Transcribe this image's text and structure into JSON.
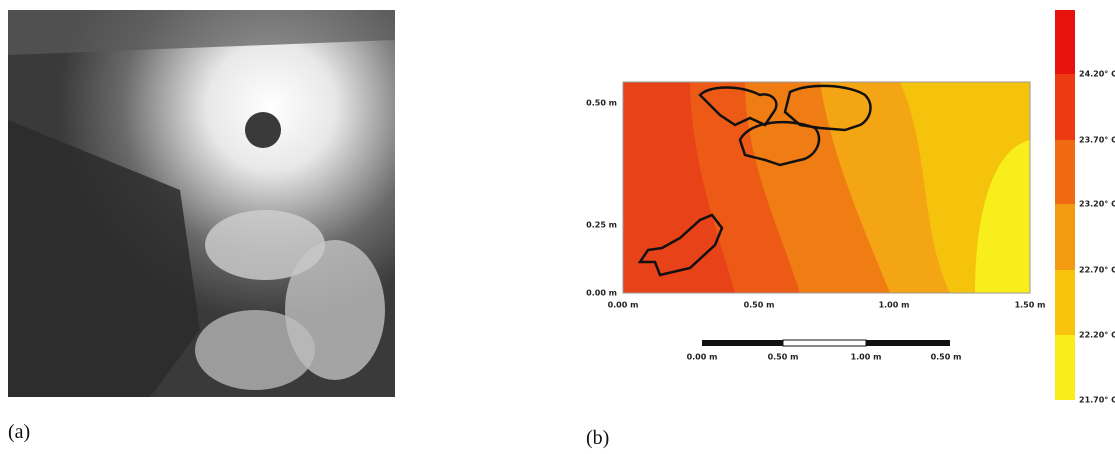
{
  "panels": {
    "a": {
      "label": "(a)"
    },
    "b": {
      "label": "(b)",
      "x_ticks": [
        "0.00 m",
        "0.50 m",
        "1.00 m",
        "1.50 m"
      ],
      "y_ticks": [
        "0.00 m",
        "0.25 m",
        "0.50 m"
      ],
      "scale_bar": [
        "0.00 m",
        "0.50 m",
        "1.00 m",
        "0.50 m"
      ],
      "colorbar": [
        "24.20° C",
        "23.70° C",
        "23.20° C",
        "22.70° C",
        "22.20° C",
        "21.70° C"
      ]
    }
  }
}
